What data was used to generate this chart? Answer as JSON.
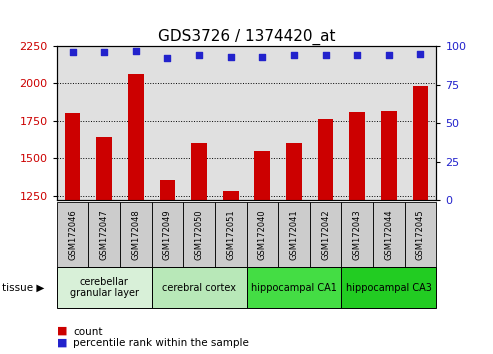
{
  "title": "GDS3726 / 1374420_at",
  "samples": [
    "GSM172046",
    "GSM172047",
    "GSM172048",
    "GSM172049",
    "GSM172050",
    "GSM172051",
    "GSM172040",
    "GSM172041",
    "GSM172042",
    "GSM172043",
    "GSM172044",
    "GSM172045"
  ],
  "counts": [
    1800,
    1640,
    2060,
    1355,
    1600,
    1280,
    1545,
    1600,
    1760,
    1810,
    1815,
    1980
  ],
  "percentiles": [
    96,
    96,
    97,
    92,
    94,
    93,
    93,
    94,
    94,
    94,
    94,
    95
  ],
  "bar_color": "#cc0000",
  "dot_color": "#2222cc",
  "ylim_left": [
    1220,
    2250
  ],
  "ylim_right": [
    0,
    100
  ],
  "yticks_left": [
    1250,
    1500,
    1750,
    2000,
    2250
  ],
  "yticks_right": [
    0,
    25,
    50,
    75,
    100
  ],
  "tissue_groups": [
    {
      "label": "cerebellar\ngranular layer",
      "start": 0,
      "end": 3,
      "color": "#d8f0d8"
    },
    {
      "label": "cerebral cortex",
      "start": 3,
      "end": 6,
      "color": "#b8e8b8"
    },
    {
      "label": "hippocampal CA1",
      "start": 6,
      "end": 9,
      "color": "#44dd44"
    },
    {
      "label": "hippocampal CA3",
      "start": 9,
      "end": 12,
      "color": "#22cc22"
    }
  ],
  "legend_count_label": "count",
  "legend_pct_label": "percentile rank within the sample",
  "bg_color": "#ffffff",
  "plot_bg_color": "#e0e0e0",
  "title_fontsize": 11,
  "tick_fontsize": 8,
  "label_fontsize": 7.5
}
